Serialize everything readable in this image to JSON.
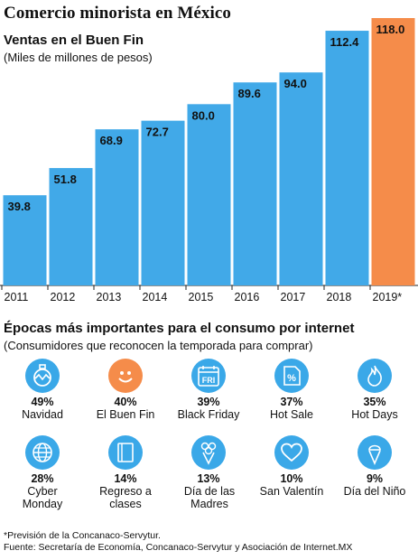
{
  "header": {
    "title": "Comercio minorista en México",
    "subtitle": "Ventas en el Buen Fin",
    "unit_note": "(Miles de millones de pesos)"
  },
  "colors": {
    "bar": "#41a9e8",
    "highlight": "#f58c4a",
    "icon_circle": "#3aa8e8",
    "icon_highlight": "#f58c4a"
  },
  "chart_data": {
    "type": "bar",
    "title": "Ventas en el Buen Fin",
    "ylabel": "(Miles de millones de pesos)",
    "categories": [
      "2011",
      "2012",
      "2013",
      "2014",
      "2015",
      "2016",
      "2017",
      "2018",
      "2019*"
    ],
    "values": [
      39.8,
      51.8,
      68.9,
      72.7,
      80.0,
      89.6,
      94.0,
      112.4,
      118.0
    ],
    "value_labels": [
      "39.8",
      "51.8",
      "68.9",
      "72.7",
      "80.0",
      "89.6",
      "94.0",
      "112.4",
      "118.0"
    ],
    "highlight_index": 8,
    "ylim": [
      0,
      118
    ],
    "grid": false,
    "legend": "none"
  },
  "section2": {
    "title": "Épocas más importantes para el consumo por internet",
    "subtitle": "(Consumidores que reconocen la temporada para comprar)",
    "items": [
      {
        "pct": "49%",
        "label": "Navidad",
        "icon": "ornament-icon",
        "highlight": false
      },
      {
        "pct": "40%",
        "label": "El Buen Fin",
        "icon": "smiley-icon",
        "highlight": true
      },
      {
        "pct": "39%",
        "label": "Black Friday",
        "icon": "calendar-icon",
        "icon_text": "FRI",
        "highlight": false
      },
      {
        "pct": "37%",
        "label": "Hot Sale",
        "icon": "discount-tag-icon",
        "highlight": false
      },
      {
        "pct": "35%",
        "label": "Hot Days",
        "icon": "flame-icon",
        "highlight": false
      },
      {
        "pct": "28%",
        "label": "Cyber Monday",
        "icon": "globe-icon",
        "highlight": false
      },
      {
        "pct": "14%",
        "label": "Regreso a clases",
        "icon": "notebook-icon",
        "highlight": false
      },
      {
        "pct": "13%",
        "label": "Día de las Madres",
        "icon": "bouquet-icon",
        "highlight": false
      },
      {
        "pct": "10%",
        "label": "San Valentín",
        "icon": "heart-icon",
        "highlight": false
      },
      {
        "pct": "9%",
        "label": "Día del Niño",
        "icon": "ice-cream-icon",
        "highlight": false
      }
    ]
  },
  "footnotes": {
    "line1": "*Previsión de la Concanaco-Servytur.",
    "line2": "Fuente: Secretaría de Economía, Concanaco-Servytur y Asociación de Internet.MX"
  }
}
